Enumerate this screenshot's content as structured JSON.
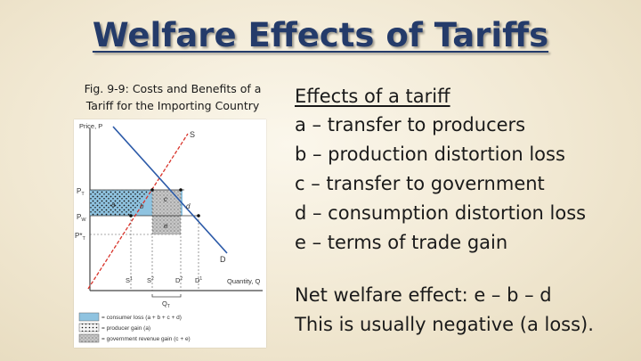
{
  "slide": {
    "title": "Welfare Effects of Tariffs"
  },
  "figure": {
    "caption_line1": "Fig. 9-9: Costs and Benefits of a",
    "caption_line2": "Tariff for the Importing Country",
    "y_axis_label": "Price, P",
    "x_axis_label": "Quantity, Q",
    "supply_label": "S",
    "demand_label": "D",
    "price_labels": [
      "P",
      "P",
      "P*"
    ],
    "price_subscripts": [
      "T",
      "W",
      "T"
    ],
    "quantity_labels": [
      "S",
      "S",
      "D",
      "D"
    ],
    "quantity_superscripts": [
      "1",
      "2",
      "2",
      "1"
    ],
    "import_label": "Q",
    "import_subscript": "T",
    "area_labels": [
      "a",
      "b",
      "c",
      "d",
      "e"
    ],
    "legend": [
      "= consumer loss (a + b + c + d)",
      "= producer gain (a)",
      "= government revenue gain (c + e)"
    ],
    "colors": {
      "consumer_loss": "#8fc3e0",
      "supply_line": "#d8332a",
      "demand_line": "#2c5aa8",
      "producer_gain_dots": "#1a1a1a",
      "revenue_gain": "#bdbdbd"
    }
  },
  "effects": {
    "heading": "Effects of a tariff",
    "items": [
      "a – transfer to producers",
      "b – production distortion loss",
      "c – transfer to government",
      "d – consumption distortion loss",
      "e – terms of trade gain"
    ]
  },
  "net_effect": {
    "line1": "Net welfare effect: e – b – d",
    "line2": "This is usually negative (a loss)."
  }
}
